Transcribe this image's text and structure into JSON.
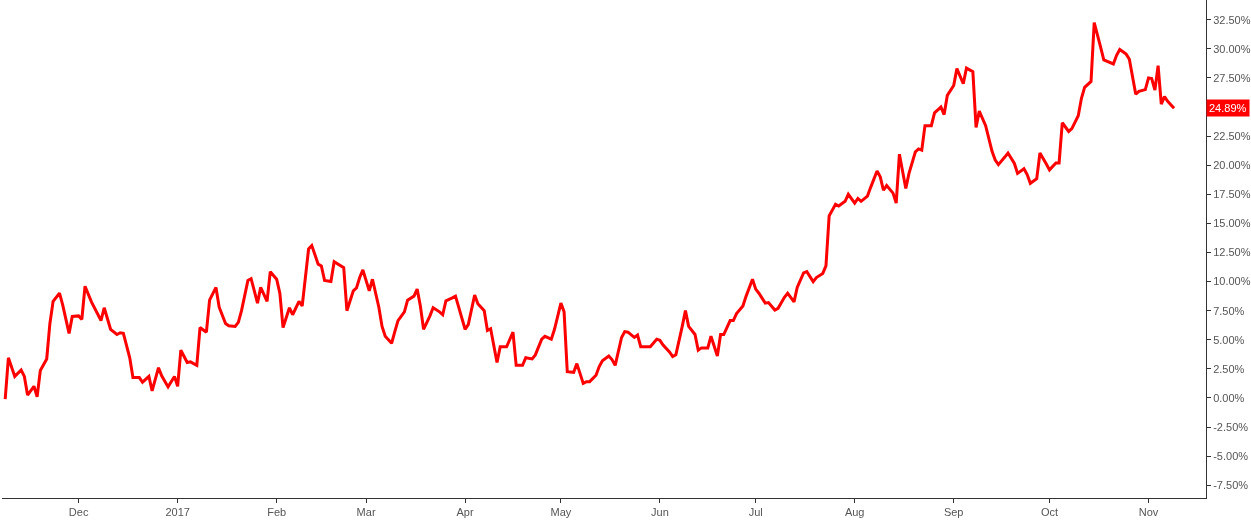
{
  "chart_data": {
    "type": "line",
    "x": [
      "2016-11-08",
      "2016-11-09",
      "2016-11-11",
      "2016-11-13",
      "2016-11-14",
      "2016-11-15",
      "2016-11-17",
      "2016-11-18",
      "2016-11-19",
      "2016-11-21",
      "2016-11-22",
      "2016-11-23",
      "2016-11-25",
      "2016-11-26",
      "2016-11-28",
      "2016-11-29",
      "2016-12-01",
      "2016-12-02",
      "2016-12-03",
      "2016-12-05",
      "2016-12-08",
      "2016-12-09",
      "2016-12-11",
      "2016-12-13",
      "2016-12-14",
      "2016-12-15",
      "2016-12-17",
      "2016-12-18",
      "2016-12-20",
      "2016-12-21",
      "2016-12-23",
      "2016-12-24",
      "2016-12-26",
      "2016-12-27",
      "2016-12-29",
      "2016-12-31",
      "2017-01-01",
      "2017-01-02",
      "2017-01-04",
      "2017-01-05",
      "2017-01-07",
      "2017-01-08",
      "2017-01-10",
      "2017-01-11",
      "2017-01-13",
      "2017-01-14",
      "2017-01-16",
      "2017-01-17",
      "2017-01-19",
      "2017-01-20",
      "2017-01-21",
      "2017-01-23",
      "2017-01-24",
      "2017-01-26",
      "2017-01-27",
      "2017-01-29",
      "2017-01-30",
      "2017-02-01",
      "2017-02-02",
      "2017-02-03",
      "2017-02-05",
      "2017-02-06",
      "2017-02-08",
      "2017-02-09",
      "2017-02-11",
      "2017-02-12",
      "2017-02-14",
      "2017-02-15",
      "2017-02-16",
      "2017-02-18",
      "2017-02-19",
      "2017-02-22",
      "2017-02-23",
      "2017-02-25",
      "2017-02-26",
      "2017-02-27",
      "2017-02-28",
      "2017-03-02",
      "2017-03-03",
      "2017-03-05",
      "2017-03-06",
      "2017-03-07",
      "2017-03-09",
      "2017-03-10",
      "2017-03-11",
      "2017-03-13",
      "2017-03-14",
      "2017-03-16",
      "2017-03-17",
      "2017-03-18",
      "2017-03-19",
      "2017-03-21",
      "2017-03-22",
      "2017-03-24",
      "2017-03-25",
      "2017-03-26",
      "2017-03-28",
      "2017-03-29",
      "2017-03-30",
      "2017-04-01",
      "2017-04-02",
      "2017-04-04",
      "2017-04-05",
      "2017-04-07",
      "2017-04-08",
      "2017-04-09",
      "2017-04-11",
      "2017-04-12",
      "2017-04-14",
      "2017-04-16",
      "2017-04-17",
      "2017-04-19",
      "2017-04-20",
      "2017-04-22",
      "2017-04-23",
      "2017-04-25",
      "2017-04-26",
      "2017-04-28",
      "2017-04-29",
      "2017-05-01",
      "2017-05-02",
      "2017-05-03",
      "2017-05-05",
      "2017-05-06",
      "2017-05-08",
      "2017-05-09",
      "2017-05-10",
      "2017-05-12",
      "2017-05-13",
      "2017-05-14",
      "2017-05-16",
      "2017-05-17",
      "2017-05-18",
      "2017-05-20",
      "2017-05-21",
      "2017-05-22",
      "2017-05-24",
      "2017-05-25",
      "2017-05-26",
      "2017-05-29",
      "2017-05-31",
      "2017-06-01",
      "2017-06-02",
      "2017-06-04",
      "2017-06-05",
      "2017-06-06",
      "2017-06-08",
      "2017-06-09",
      "2017-06-10",
      "2017-06-12",
      "2017-06-13",
      "2017-06-14",
      "2017-06-16",
      "2017-06-17",
      "2017-06-19",
      "2017-06-20",
      "2017-06-21",
      "2017-06-23",
      "2017-06-24",
      "2017-06-25",
      "2017-06-27",
      "2017-06-28",
      "2017-06-30",
      "2017-07-01",
      "2017-07-02",
      "2017-07-04",
      "2017-07-05",
      "2017-07-07",
      "2017-07-08",
      "2017-07-10",
      "2017-07-11",
      "2017-07-13",
      "2017-07-14",
      "2017-07-16",
      "2017-07-17",
      "2017-07-19",
      "2017-07-20",
      "2017-07-22",
      "2017-07-23",
      "2017-07-24",
      "2017-07-26",
      "2017-07-27",
      "2017-07-29",
      "2017-07-30",
      "2017-08-01",
      "2017-08-02",
      "2017-08-03",
      "2017-08-05",
      "2017-08-06",
      "2017-08-08",
      "2017-08-09",
      "2017-08-10",
      "2017-08-11",
      "2017-08-13",
      "2017-08-14",
      "2017-08-15",
      "2017-08-17",
      "2017-08-18",
      "2017-08-20",
      "2017-08-21",
      "2017-08-22",
      "2017-08-23",
      "2017-08-25",
      "2017-08-26",
      "2017-08-28",
      "2017-08-29",
      "2017-08-30",
      "2017-09-01",
      "2017-09-02",
      "2017-09-04",
      "2017-09-05",
      "2017-09-07",
      "2017-09-08",
      "2017-09-09",
      "2017-09-11",
      "2017-09-13",
      "2017-09-14",
      "2017-09-15",
      "2017-09-17",
      "2017-09-18",
      "2017-09-20",
      "2017-09-21",
      "2017-09-23",
      "2017-09-24",
      "2017-09-25",
      "2017-09-27",
      "2017-09-28",
      "2017-09-30",
      "2017-10-01",
      "2017-10-03",
      "2017-10-04",
      "2017-10-05",
      "2017-10-07",
      "2017-10-08",
      "2017-10-10",
      "2017-10-11",
      "2017-10-12",
      "2017-10-14",
      "2017-10-15",
      "2017-10-17",
      "2017-10-18",
      "2017-10-21",
      "2017-10-22",
      "2017-10-23",
      "2017-10-25",
      "2017-10-26",
      "2017-10-28",
      "2017-10-29",
      "2017-10-31",
      "2017-11-01",
      "2017-11-02",
      "2017-11-03",
      "2017-11-04",
      "2017-11-05",
      "2017-11-06",
      "2017-11-07",
      "2017-11-09"
    ],
    "series": [
      {
        "color": "#ff0000",
        "values": [
          -0.1,
          3.45,
          1.85,
          2.4,
          1.85,
          0.25,
          1.0,
          0.1,
          2.35,
          3.35,
          6.4,
          8.3,
          9.0,
          8.0,
          5.55,
          7.0,
          7.05,
          6.75,
          9.6,
          8.25,
          6.65,
          7.75,
          5.9,
          5.45,
          5.6,
          5.55,
          3.45,
          1.75,
          1.75,
          1.35,
          1.85,
          0.6,
          2.6,
          1.9,
          0.95,
          1.85,
          1.0,
          4.1,
          3.05,
          3.1,
          2.8,
          6.05,
          5.65,
          8.4,
          9.5,
          7.8,
          6.4,
          6.2,
          6.15,
          6.5,
          7.5,
          10.1,
          10.25,
          8.15,
          9.5,
          8.3,
          10.85,
          10.2,
          9.0,
          6.05,
          7.75,
          7.15,
          8.3,
          7.9,
          12.8,
          13.1,
          11.5,
          11.35,
          10.1,
          10.0,
          11.7,
          11.2,
          7.5,
          9.2,
          9.45,
          10.35,
          11.0,
          9.2,
          10.2,
          7.8,
          6.15,
          5.3,
          4.7,
          5.7,
          6.65,
          7.4,
          8.4,
          8.75,
          9.35,
          7.9,
          5.9,
          7.05,
          7.75,
          7.4,
          7.15,
          8.35,
          8.6,
          8.75,
          7.8,
          5.9,
          6.3,
          8.85,
          8.1,
          7.5,
          5.8,
          5.95,
          3.05,
          4.4,
          4.4,
          5.65,
          2.8,
          2.8,
          3.45,
          3.35,
          3.7,
          5.05,
          5.3,
          5.05,
          5.9,
          8.15,
          7.4,
          2.25,
          2.2,
          2.95,
          1.25,
          1.4,
          1.4,
          1.95,
          2.7,
          3.2,
          3.6,
          3.3,
          2.8,
          5.2,
          5.7,
          5.65,
          5.2,
          5.4,
          4.4,
          4.4,
          5.05,
          4.95,
          4.55,
          3.95,
          3.55,
          3.7,
          6.15,
          7.5,
          6.15,
          5.45,
          4.1,
          4.3,
          4.3,
          5.3,
          3.6,
          5.45,
          5.45,
          6.65,
          6.65,
          7.25,
          7.9,
          8.75,
          10.2,
          9.35,
          9.0,
          8.15,
          8.2,
          7.55,
          7.7,
          8.65,
          9.0,
          8.25,
          9.5,
          10.75,
          10.85,
          10.0,
          10.35,
          10.7,
          11.35,
          15.65,
          16.65,
          16.5,
          16.9,
          17.5,
          16.75,
          17.15,
          16.9,
          17.35,
          18.1,
          19.5,
          19.0,
          17.85,
          18.25,
          17.6,
          16.75,
          20.95,
          18.0,
          19.3,
          21.15,
          21.4,
          21.3,
          23.4,
          23.4,
          24.5,
          25.0,
          24.35,
          26.0,
          26.85,
          28.3,
          27.0,
          28.35,
          28.05,
          23.25,
          24.65,
          23.4,
          21.2,
          20.45,
          20.05,
          20.7,
          21.05,
          20.15,
          19.3,
          19.7,
          19.2,
          18.45,
          18.85,
          21.05,
          20.1,
          19.6,
          20.2,
          20.2,
          23.65,
          22.9,
          23.15,
          24.25,
          25.75,
          26.7,
          27.2,
          32.25,
          30.15,
          29.05,
          28.7,
          29.45,
          29.95,
          29.55,
          29.1,
          26.1,
          26.35,
          26.5,
          27.5,
          27.45,
          26.45,
          28.55,
          25.25,
          25.9,
          25.5,
          24.89
        ]
      }
    ],
    "xlim": [
      "2016-11-07",
      "2017-11-19"
    ],
    "xticks": [
      {
        "value": "2016-12-01",
        "label": "Dec"
      },
      {
        "value": "2017-01-01",
        "label": "2017"
      },
      {
        "value": "2017-02-01",
        "label": "Feb"
      },
      {
        "value": "2017-03-01",
        "label": "Mar"
      },
      {
        "value": "2017-04-01",
        "label": "Apr"
      },
      {
        "value": "2017-05-01",
        "label": "May"
      },
      {
        "value": "2017-06-01",
        "label": "Jun"
      },
      {
        "value": "2017-07-01",
        "label": "Jul"
      },
      {
        "value": "2017-08-01",
        "label": "Aug"
      },
      {
        "value": "2017-09-01",
        "label": "Sep"
      },
      {
        "value": "2017-10-01",
        "label": "Oct"
      },
      {
        "value": "2017-11-01",
        "label": "Nov"
      }
    ],
    "ylim": [
      -8.6,
      34.2
    ],
    "yticks": [
      {
        "value": -7.5,
        "label": "-7.50%"
      },
      {
        "value": -5,
        "label": "-5.00%"
      },
      {
        "value": -2.5,
        "label": "-2.50%"
      },
      {
        "value": 0,
        "label": "0.00%"
      },
      {
        "value": 2.5,
        "label": "2.50%"
      },
      {
        "value": 5,
        "label": "5.00%"
      },
      {
        "value": 7.5,
        "label": "7.50%"
      },
      {
        "value": 10,
        "label": "10.00%"
      },
      {
        "value": 12.5,
        "label": "12.50%"
      },
      {
        "value": 15,
        "label": "15.00%"
      },
      {
        "value": 17.5,
        "label": "17.50%"
      },
      {
        "value": 20,
        "label": "20.00%"
      },
      {
        "value": 22.5,
        "label": "22.50%"
      },
      {
        "value": 25,
        "label": null
      },
      {
        "value": 27.5,
        "label": "27.50%"
      },
      {
        "value": 30,
        "label": "30.00%"
      },
      {
        "value": 32.5,
        "label": "32.50%"
      }
    ],
    "annotations": [
      {
        "text": "24.89%",
        "y": 24.89
      }
    ],
    "grid": false,
    "marker": "none",
    "line_style": "solid"
  }
}
